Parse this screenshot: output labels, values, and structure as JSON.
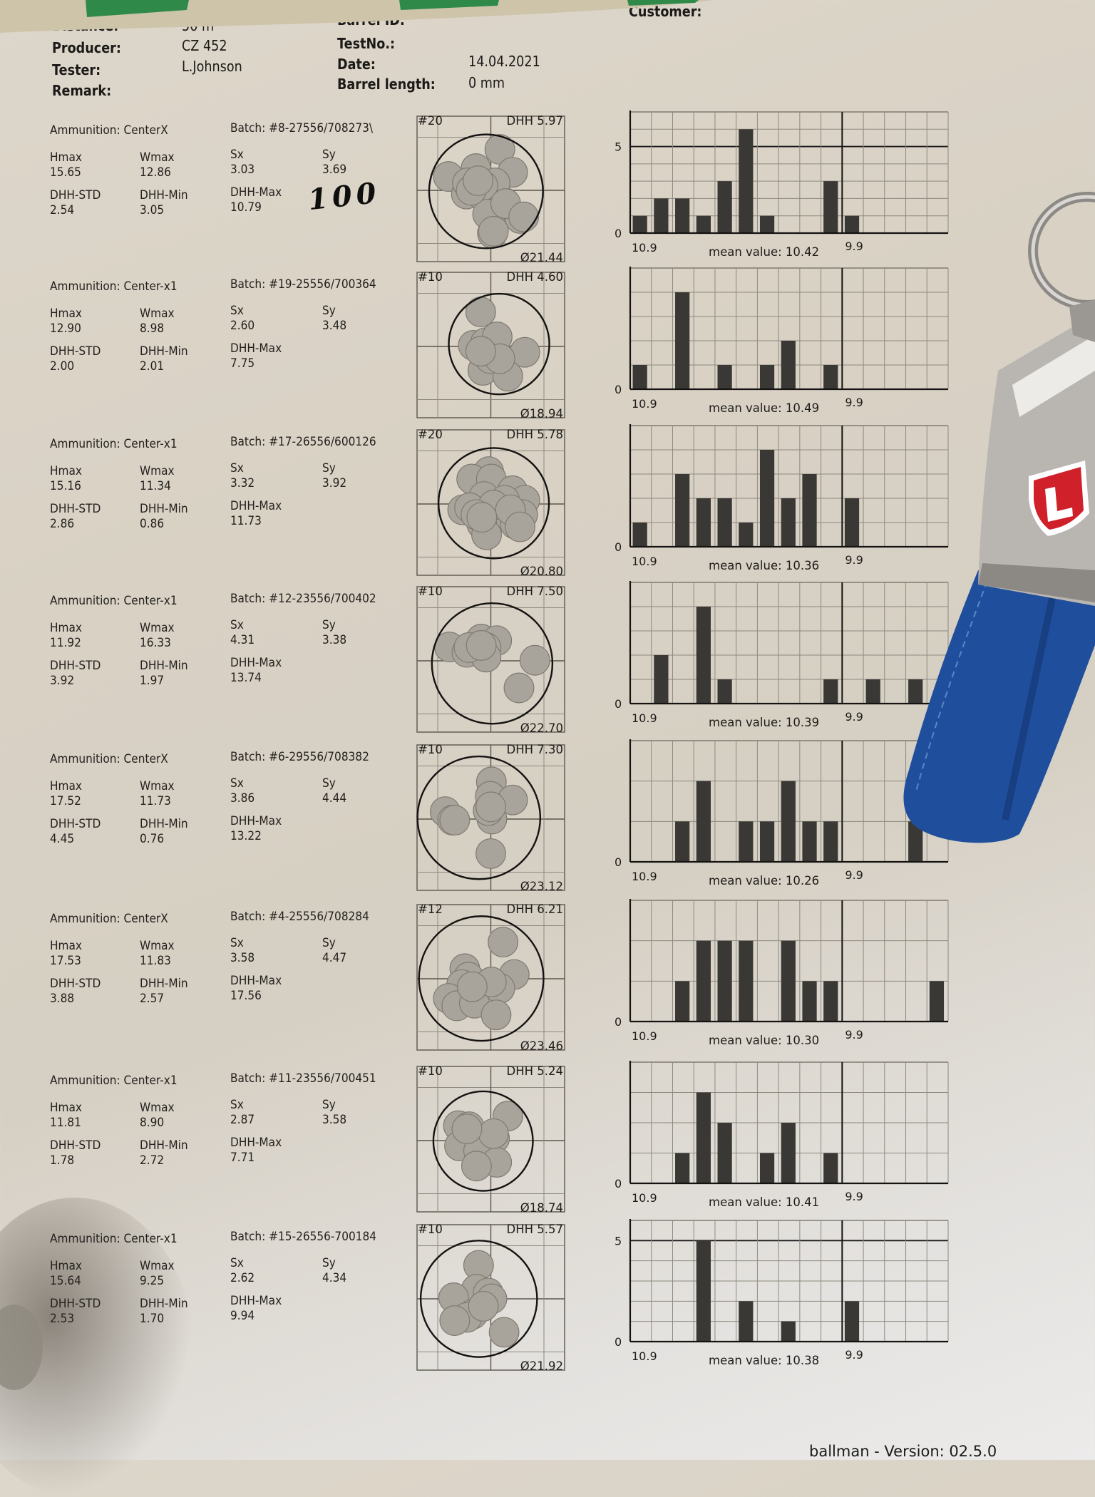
{
  "header": {
    "distance_label": "Distance:",
    "distance_value": "50 m",
    "producer_label": "Producer:",
    "producer_value": "CZ 452",
    "tester_label": "Tester:",
    "tester_value": "L.Johnson",
    "remark_label": "Remark:",
    "barrel_id_label": "Barrel ID:",
    "testno_label": "TestNo.:",
    "date_label": "Date:",
    "date_value": "14.04.2021",
    "barrel_length_label": "Barrel length:",
    "barrel_length_value": "0 mm",
    "customer_label": "Customer:"
  },
  "stat_labels": {
    "hmax": "Hmax",
    "wmax": "Wmax",
    "sx": "Sx",
    "sy": "Sy",
    "dhh_std": "DHH-STD",
    "dhh_min": "DHH-Min",
    "dhh_max": "DHH-Max"
  },
  "handwritten_note": "100",
  "groups": [
    {
      "ammunition": "Ammunition: CenterX",
      "batch": "Batch: #8-27556/708273\\",
      "stats": {
        "hmax": "15.65",
        "wmax": "12.86",
        "sx": "3.03",
        "sy": "3.69",
        "dhh_std": "2.54",
        "dhh_min": "3.05",
        "dhh_max": "10.79"
      },
      "target": {
        "shots_label": "#20",
        "dhh_label": "DHH 5.97",
        "diameter_label": "Ø21.44",
        "diameter_mm": 21.44,
        "shots_mm": [
          [
            1.7,
            7.7
          ],
          [
            -8.0,
            2.6
          ],
          [
            -2.8,
            4.1
          ],
          [
            4.1,
            3.4
          ],
          [
            -4.6,
            -0.7
          ],
          [
            -1.9,
            -0.7
          ],
          [
            0.1,
            -0.2
          ],
          [
            2.6,
            -2.3
          ],
          [
            5.5,
            -5.3
          ],
          [
            -0.1,
            -4.7
          ],
          [
            0.3,
            -8.1
          ],
          [
            -4.4,
            1.4
          ],
          [
            0.8,
            1.4
          ],
          [
            -1.5,
            0.9
          ],
          [
            -0.6,
            -4.5
          ],
          [
            2.8,
            -2.5
          ],
          [
            -3.7,
            0
          ],
          [
            6.2,
            -5.0
          ],
          [
            0.5,
            -7.7
          ],
          [
            -2.4,
            1.8
          ]
        ]
      }
    },
    {
      "ammunition": "Ammunition: Center-x1",
      "batch": "Batch: #19-25556/700364",
      "stats": {
        "hmax": "12.90",
        "wmax": "8.98",
        "sx": "2.60",
        "sy": "3.48",
        "dhh_std": "2.00",
        "dhh_min": "2.01",
        "dhh_max": "7.75"
      },
      "target": {
        "shots_label": "#10",
        "dhh_label": "DHH 4.60",
        "diameter_label": "Ø18.94",
        "diameter_mm": 18.94,
        "shots_mm": [
          [
            -1.9,
            6.5
          ],
          [
            -3.3,
            0.2
          ],
          [
            -1.0,
            0.7
          ],
          [
            1.2,
            1.8
          ],
          [
            6.4,
            -1.1
          ],
          [
            -1.5,
            -4.5
          ],
          [
            3.2,
            -5.6
          ],
          [
            -0.1,
            -2.3
          ],
          [
            1.7,
            -2.3
          ],
          [
            -1.9,
            -0.9
          ]
        ]
      }
    },
    {
      "ammunition": "Ammunition: Center-x1",
      "batch": "Batch: #17-26556/600126",
      "stats": {
        "hmax": "15.16",
        "wmax": "11.34",
        "sx": "3.32",
        "sy": "3.92",
        "dhh_std": "2.86",
        "dhh_min": "0.86",
        "dhh_max": "11.73"
      },
      "target": {
        "shots_label": "#20",
        "dhh_label": "DHH 5.78",
        "diameter_label": "Ø20.80",
        "diameter_mm": 20.8,
        "shots_mm": [
          [
            -0.4,
            6.1
          ],
          [
            -3.6,
            4.7
          ],
          [
            0.1,
            4.7
          ],
          [
            4.1,
            2.5
          ],
          [
            -1.3,
            1.4
          ],
          [
            6.4,
            0.7
          ],
          [
            -5.3,
            -1.1
          ],
          [
            6.0,
            -2.0
          ],
          [
            -0.4,
            -1.8
          ],
          [
            1.9,
            -2.5
          ],
          [
            -1.7,
            -3.8
          ],
          [
            -0.8,
            -5.8
          ],
          [
            4.6,
            -3.8
          ],
          [
            -4.0,
            -0.7
          ],
          [
            2.6,
            0.7
          ],
          [
            0.5,
            -0.2
          ],
          [
            -2.8,
            -2.0
          ],
          [
            3.7,
            -1.1
          ],
          [
            -1.7,
            -2.5
          ],
          [
            5.5,
            -4.3
          ]
        ]
      }
    },
    {
      "ammunition": "Ammunition: Center-x1",
      "batch": "Batch: #12-23556/700402",
      "stats": {
        "hmax": "11.92",
        "wmax": "16.33",
        "sx": "4.31",
        "sy": "3.38",
        "dhh_std": "3.92",
        "dhh_min": "1.97",
        "dhh_max": "13.74"
      },
      "target": {
        "shots_label": "#10",
        "dhh_label": "DHH 7.50",
        "diameter_label": "Ø22.70",
        "diameter_mm": 22.7,
        "shots_mm": [
          [
            -7.8,
            2.6
          ],
          [
            -4.5,
            1.6
          ],
          [
            -1.8,
            4.1
          ],
          [
            1.1,
            3.8
          ],
          [
            -0.9,
            2.5
          ],
          [
            -0.9,
            0.7
          ],
          [
            -4.1,
            2.5
          ],
          [
            8.3,
            0.1
          ],
          [
            5.3,
            -5.1
          ],
          [
            -1.8,
            2.9
          ]
        ]
      }
    },
    {
      "ammunition": "Ammunition: CenterX",
      "batch": "Batch: #6-29556/708382",
      "stats": {
        "hmax": "17.52",
        "wmax": "11.73",
        "sx": "3.86",
        "sy": "4.44",
        "dhh_std": "4.45",
        "dhh_min": "0.76",
        "dhh_max": "13.22"
      },
      "target": {
        "shots_label": "#10",
        "dhh_label": "DHH 7.30",
        "diameter_label": "Ø23.12",
        "diameter_mm": 23.12,
        "shots_mm": [
          [
            0.1,
            7.0
          ],
          [
            -0.1,
            4.3
          ],
          [
            4.1,
            3.6
          ],
          [
            -8.6,
            1.4
          ],
          [
            -7.2,
            -0.2
          ],
          [
            -6.8,
            -0.2
          ],
          [
            0.2,
            0
          ],
          [
            0,
            -6.5
          ],
          [
            -0.5,
            1.6
          ],
          [
            0,
            2.3
          ]
        ]
      }
    },
    {
      "ammunition": "Ammunition: CenterX",
      "batch": "Batch: #4-25556/708284",
      "stats": {
        "hmax": "17.53",
        "wmax": "11.83",
        "sx": "3.58",
        "sy": "4.47",
        "dhh_std": "3.88",
        "dhh_min": "2.57",
        "dhh_max": "17.56"
      },
      "target": {
        "shots_label": "#12",
        "dhh_label": "DHH 6.21",
        "diameter_label": "Ø23.46",
        "diameter_mm": 23.46,
        "shots_mm": [
          [
            2.3,
            6.9
          ],
          [
            -4.9,
            1.9
          ],
          [
            -4.2,
            0.3
          ],
          [
            -5.5,
            -1.1
          ],
          [
            4.4,
            0.8
          ],
          [
            1.7,
            -1.8
          ],
          [
            -8.0,
            -3.7
          ],
          [
            -6.4,
            -5.1
          ],
          [
            -3.1,
            -4.6
          ],
          [
            1.0,
            -6.8
          ],
          [
            0.1,
            -0.6
          ],
          [
            -3.5,
            -1.5
          ]
        ]
      }
    },
    {
      "ammunition": "Ammunition: Center-x1",
      "batch": "Batch: #11-23556/700451",
      "stats": {
        "hmax": "11.81",
        "wmax": "8.90",
        "sx": "2.87",
        "sy": "3.58",
        "dhh_std": "1.78",
        "dhh_min": "2.72",
        "dhh_max": "7.71"
      },
      "target": {
        "shots_label": "#10",
        "dhh_label": "DHH 5.24",
        "diameter_label": "Ø18.74",
        "diameter_mm": 18.74,
        "shots_mm": [
          [
            3.2,
            4.6
          ],
          [
            -6.1,
            2.8
          ],
          [
            -4.1,
            2.6
          ],
          [
            0.7,
            0.4
          ],
          [
            -5.9,
            -1.0
          ],
          [
            -2.3,
            -1.9
          ],
          [
            1.1,
            -4.1
          ],
          [
            -2.7,
            -4.8
          ],
          [
            0.5,
            1.3
          ],
          [
            -4.5,
            2.2
          ]
        ]
      }
    },
    {
      "ammunition": "Ammunition: Center-x1",
      "batch": "Batch: #15-26556-700184",
      "stats": {
        "hmax": "15.64",
        "wmax": "9.25",
        "sx": "2.62",
        "sy": "4.34",
        "dhh_std": "2.53",
        "dhh_min": "1.70",
        "dhh_max": "9.94"
      },
      "target": {
        "shots_label": "#10",
        "dhh_label": "DHH 5.57",
        "diameter_label": "Ø21.92",
        "diameter_mm": 21.92,
        "shots_mm": [
          [
            -2.3,
            6.3
          ],
          [
            -2.7,
            1.8
          ],
          [
            -7.0,
            0.2
          ],
          [
            -0.5,
            1.1
          ],
          [
            0.2,
            0
          ],
          [
            -3.4,
            -2.9
          ],
          [
            -4.5,
            -3.5
          ],
          [
            -6.8,
            -4.1
          ],
          [
            2.5,
            -6.3
          ],
          [
            -1.4,
            -1.4
          ]
        ]
      }
    }
  ],
  "chart_data": [
    {
      "type": "bar",
      "x_tick_labels": [
        "10.9",
        "9.9"
      ],
      "bins": 15,
      "values": [
        1,
        2,
        2,
        1,
        3,
        6,
        1,
        0,
        0,
        3,
        1,
        0,
        0,
        0,
        0
      ],
      "y_tick_labels": [
        "0",
        "5"
      ],
      "ylim": [
        0,
        7
      ],
      "mean_label": "mean value: 10.42",
      "grid": true
    },
    {
      "type": "bar",
      "x_tick_labels": [
        "10.9",
        "9.9"
      ],
      "bins": 15,
      "values": [
        1,
        0,
        4,
        0,
        1,
        0,
        1,
        2,
        0,
        1,
        0,
        0,
        0,
        0,
        0
      ],
      "y_tick_labels": [
        "0"
      ],
      "ylim": [
        0,
        5
      ],
      "mean_label": "mean value: 10.49",
      "grid": true
    },
    {
      "type": "bar",
      "x_tick_labels": [
        "10.9",
        "9.9"
      ],
      "bins": 15,
      "values": [
        1,
        0,
        3,
        2,
        2,
        1,
        4,
        2,
        3,
        0,
        2,
        0,
        0,
        0,
        0
      ],
      "y_tick_labels": [
        "0"
      ],
      "ylim": [
        0,
        5
      ],
      "mean_label": "mean value: 10.36",
      "grid": true
    },
    {
      "type": "bar",
      "x_tick_labels": [
        "10.9",
        "9.9"
      ],
      "bins": 15,
      "values": [
        0,
        2,
        0,
        4,
        1,
        0,
        0,
        0,
        0,
        1,
        0,
        1,
        0,
        1,
        0
      ],
      "y_tick_labels": [
        "0"
      ],
      "ylim": [
        0,
        5
      ],
      "mean_label": "mean value: 10.39",
      "grid": true
    },
    {
      "type": "bar",
      "x_tick_labels": [
        "10.9",
        "9.9"
      ],
      "bins": 15,
      "values": [
        0,
        0,
        1,
        2,
        0,
        1,
        1,
        2,
        1,
        1,
        0,
        0,
        0,
        1,
        0
      ],
      "y_tick_labels": [
        "0"
      ],
      "ylim": [
        0,
        3
      ],
      "mean_label": "mean value: 10.26",
      "grid": true
    },
    {
      "type": "bar",
      "x_tick_labels": [
        "10.9",
        "9.9"
      ],
      "bins": 15,
      "values": [
        0,
        0,
        1,
        2,
        2,
        2,
        0,
        2,
        1,
        1,
        0,
        0,
        0,
        0,
        1
      ],
      "y_tick_labels": [
        "0"
      ],
      "ylim": [
        0,
        3
      ],
      "mean_label": "mean value: 10.30",
      "grid": true
    },
    {
      "type": "bar",
      "x_tick_labels": [
        "10.9",
        "9.9"
      ],
      "bins": 15,
      "values": [
        0,
        0,
        1,
        3,
        2,
        0,
        1,
        2,
        0,
        1,
        0,
        0,
        0,
        0,
        0
      ],
      "y_tick_labels": [
        "0"
      ],
      "ylim": [
        0,
        4
      ],
      "mean_label": "mean value: 10.41",
      "grid": true
    },
    {
      "type": "bar",
      "x_tick_labels": [
        "10.9",
        "9.9"
      ],
      "bins": 15,
      "values": [
        0,
        0,
        0,
        5,
        0,
        2,
        0,
        1,
        0,
        0,
        2,
        0,
        0,
        0,
        0
      ],
      "y_tick_labels": [
        "0",
        "5"
      ],
      "ylim": [
        0,
        6
      ],
      "mean_label": "mean value: 10.38",
      "grid": true
    }
  ],
  "footer": {
    "version_text": "ballman - Version: 02.5.0"
  },
  "keychain": {
    "logo_letter": "L",
    "strap_color": "#1f4f9c",
    "logo_red": "#d0202a"
  },
  "colors": {
    "paper": "#d9d2c6",
    "bars": "#3a3835",
    "shots": "#a9a49b"
  }
}
